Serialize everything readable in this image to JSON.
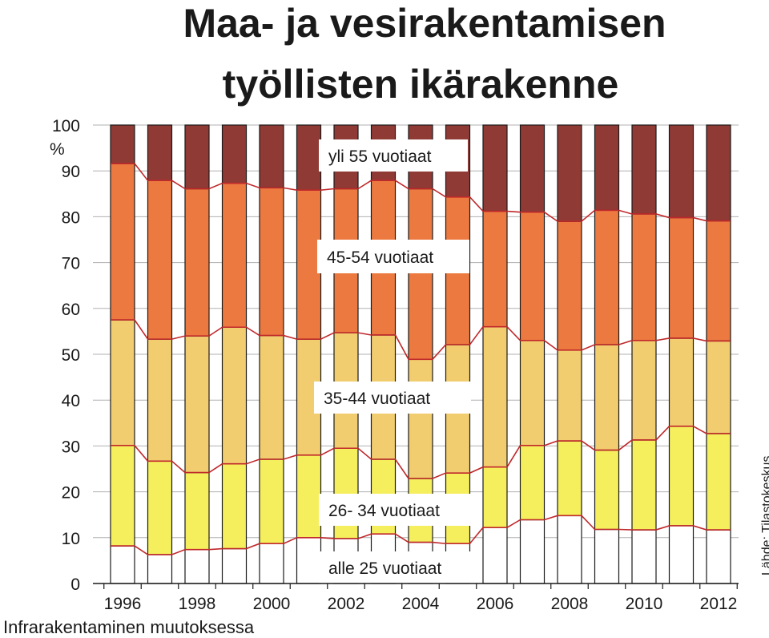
{
  "chart_data": {
    "type": "bar",
    "stacked": true,
    "title": [
      "Maa- ja vesirakentamisen",
      "työllisten ikärakenne"
    ],
    "ylabel": "%",
    "ylim": [
      0,
      100
    ],
    "yticks": [
      0,
      10,
      20,
      30,
      40,
      50,
      60,
      70,
      80,
      90,
      100
    ],
    "categories": [
      1996,
      1997,
      1998,
      1999,
      2000,
      2001,
      2002,
      2003,
      2004,
      2005,
      2006,
      2007,
      2008,
      2009,
      2010,
      2011,
      2012
    ],
    "xtick_labels": [
      "1996",
      "1998",
      "2000",
      "2002",
      "2004",
      "2006",
      "2008",
      "2010",
      "2012"
    ],
    "series": [
      {
        "name": "alle 25 vuotiaat",
        "color": "#ffffff",
        "values": [
          8.2,
          6.3,
          7.4,
          7.6,
          8.7,
          10.0,
          9.8,
          10.8,
          9.0,
          8.7,
          12.2,
          13.9,
          14.8,
          11.8,
          11.7,
          12.6,
          11.7
        ]
      },
      {
        "name": "26- 34 vuotiaat",
        "color": "#f5ef5e",
        "values": [
          21.9,
          20.4,
          16.8,
          18.5,
          18.4,
          18.0,
          19.7,
          16.3,
          13.9,
          15.4,
          13.2,
          16.2,
          16.3,
          17.3,
          19.6,
          21.7,
          21.0
        ]
      },
      {
        "name": "35-44 vuotiaat",
        "color": "#f2cd6f",
        "values": [
          27.4,
          26.6,
          29.8,
          29.8,
          27.0,
          25.3,
          25.2,
          27.1,
          26.0,
          28.0,
          30.6,
          22.9,
          19.8,
          23.0,
          21.7,
          19.2,
          20.2
        ]
      },
      {
        "name": "45-54 vuotiaat",
        "color": "#ec7a40",
        "values": [
          34.1,
          34.6,
          32.1,
          31.4,
          32.2,
          32.5,
          31.4,
          33.7,
          37.2,
          32.2,
          25.2,
          28.0,
          28.1,
          29.3,
          27.6,
          26.3,
          26.2
        ]
      },
      {
        "name": "yli 55 vuotiaat",
        "color": "#8f3a35",
        "values": [
          8.4,
          12.1,
          13.9,
          12.7,
          13.7,
          14.2,
          13.9,
          12.1,
          13.9,
          15.7,
          18.8,
          19.0,
          21.0,
          18.6,
          19.4,
          20.2,
          20.9
        ]
      }
    ],
    "series_label_order": [
      "yli 55 vuotiaat",
      "45-54 vuotiaat",
      "35-44 vuotiaat",
      "26- 34 vuotiaat",
      "alle 25 vuotiaat"
    ],
    "footer": "Infrarakentaminen muutoksessa",
    "source": "Lähde: Tilastokeskus",
    "colors": {
      "boundary_line": "#c0282b",
      "outline": "#1a1a1a",
      "grid": "#b0b0b0"
    }
  }
}
